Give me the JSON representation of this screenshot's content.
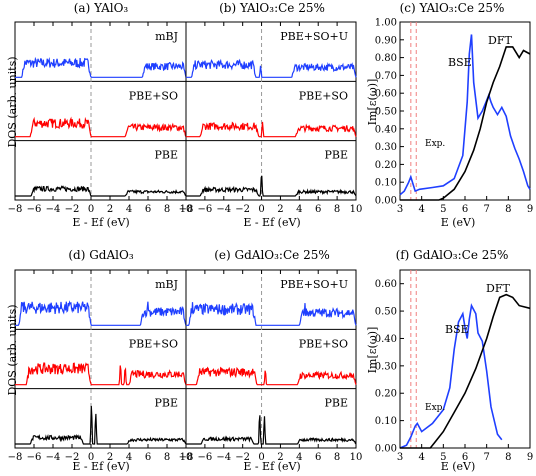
{
  "chart_data": [
    {
      "id": "a",
      "type": "line",
      "title": "(a) YAlO₃",
      "ylabel": "DOS (arb. units)",
      "xlabel": "E - Ef (eV)",
      "xlim": [
        -8,
        10
      ],
      "xticks": [
        -8,
        -6,
        -4,
        -2,
        0,
        2,
        4,
        6,
        8,
        10
      ],
      "panels": [
        {
          "label": "mBJ",
          "color": "#1f3fff",
          "bands": [
            {
              "from": -7.3,
              "to": 0.0,
              "height": 0.34
            },
            {
              "from": 5.4,
              "to": 10.0,
              "height": 0.26
            }
          ],
          "spikes": []
        },
        {
          "label": "PBE+SO",
          "color": "#ff0000",
          "bands": [
            {
              "from": -6.4,
              "to": 0.0,
              "height": 0.32
            },
            {
              "from": 3.6,
              "to": 10.0,
              "height": 0.22
            }
          ],
          "spikes": []
        },
        {
          "label": "PBE",
          "color": "#000000",
          "bands": [
            {
              "from": -6.3,
              "to": 0.0,
              "height": 0.17
            },
            {
              "from": 3.6,
              "to": 10.0,
              "height": 0.1
            }
          ],
          "spikes": []
        }
      ]
    },
    {
      "id": "b",
      "type": "line",
      "title": "(b) YAlO₃:Ce 25%",
      "xlabel": "E - Ef (eV)",
      "xlim": [
        -8,
        10
      ],
      "xticks": [
        -8,
        -6,
        -4,
        -2,
        0,
        2,
        4,
        6,
        8,
        10
      ],
      "panels": [
        {
          "label": "PBE+SO+U",
          "color": "#1f3fff",
          "bands": [
            {
              "from": -7.4,
              "to": -0.6,
              "height": 0.3
            },
            {
              "from": 3.2,
              "to": 10.0,
              "height": 0.24
            }
          ],
          "spikes": [
            {
              "x": -0.1,
              "height": 0.25
            }
          ]
        },
        {
          "label": "PBE+SO",
          "color": "#ff0000",
          "bands": [
            {
              "from": -6.5,
              "to": -0.3,
              "height": 0.25
            },
            {
              "from": 3.6,
              "to": 10.0,
              "height": 0.2
            }
          ],
          "spikes": [
            {
              "x": 0.1,
              "height": 0.3
            }
          ]
        },
        {
          "label": "PBE",
          "color": "#000000",
          "bands": [
            {
              "from": -6.5,
              "to": -0.3,
              "height": 0.15
            },
            {
              "from": 3.6,
              "to": 10.0,
              "height": 0.1
            }
          ],
          "spikes": [
            {
              "x": 0.0,
              "height": 0.55
            }
          ]
        }
      ]
    },
    {
      "id": "c",
      "type": "line",
      "title": "(c) YAlO₃:Ce 25%",
      "xlabel": "E (eV)",
      "ylabel": "Im[ε(ω)]",
      "xlim": [
        3,
        9
      ],
      "ylim": [
        0,
        1.0
      ],
      "xticks": [
        3,
        4,
        5,
        6,
        7,
        8,
        9
      ],
      "yticks": [
        "0.00",
        "0.10",
        "0.20",
        "0.30",
        "0.40",
        "0.50",
        "0.60",
        "0.70",
        "0.80",
        "0.90",
        "1.00"
      ],
      "annotations": [
        "Exp."
      ],
      "exp_lines": [
        3.5,
        3.75
      ],
      "series": [
        {
          "name": "BSE",
          "color": "#1f3fff",
          "x": [
            3.0,
            3.2,
            3.4,
            3.5,
            3.6,
            3.7,
            3.9,
            4.5,
            5.0,
            5.5,
            5.9,
            6.1,
            6.2,
            6.3,
            6.4,
            6.6,
            6.8,
            7.0,
            7.1,
            7.2,
            7.3,
            7.5,
            7.7,
            7.9,
            8.1,
            8.3,
            8.5,
            8.7,
            8.9,
            9.0
          ],
          "y": [
            0.03,
            0.05,
            0.1,
            0.13,
            0.09,
            0.05,
            0.06,
            0.07,
            0.08,
            0.12,
            0.25,
            0.55,
            0.82,
            0.93,
            0.66,
            0.46,
            0.5,
            0.56,
            0.59,
            0.55,
            0.52,
            0.48,
            0.52,
            0.47,
            0.36,
            0.29,
            0.23,
            0.16,
            0.08,
            0.06
          ]
        },
        {
          "name": "DFT",
          "color": "#000000",
          "x": [
            3.0,
            4.8,
            5.0,
            5.5,
            6.0,
            6.4,
            6.7,
            7.0,
            7.3,
            7.6,
            7.9,
            8.2,
            8.5,
            8.7,
            9.0
          ],
          "y": [
            0.0,
            0.0,
            0.01,
            0.06,
            0.16,
            0.28,
            0.4,
            0.55,
            0.66,
            0.75,
            0.86,
            0.86,
            0.8,
            0.84,
            0.82
          ]
        }
      ]
    },
    {
      "id": "d",
      "type": "line",
      "title": "(d) GdAlO₃",
      "ylabel": "DOS (arb. units)",
      "xlabel": "E - Ef (eV)",
      "xlim": [
        -8,
        10
      ],
      "xticks": [
        -8,
        -6,
        -4,
        -2,
        0,
        2,
        4,
        6,
        8,
        10
      ],
      "panels": [
        {
          "label": "mBJ",
          "color": "#1f3fff",
          "bands": [
            {
              "from": -7.6,
              "to": 0.0,
              "height": 0.42
            },
            {
              "from": 5.2,
              "to": 10.0,
              "height": 0.32
            }
          ],
          "spikes": [
            {
              "x": -7.2,
              "height": 0.62
            },
            {
              "x": 6.0,
              "height": 0.55
            }
          ]
        },
        {
          "label": "PBE+SO",
          "color": "#ff0000",
          "bands": [
            {
              "from": -6.8,
              "to": 0.0,
              "height": 0.38
            },
            {
              "from": 4.0,
              "to": 10.0,
              "height": 0.25
            }
          ],
          "spikes": [
            {
              "x": -2.7,
              "height": 0.55
            },
            {
              "x": 3.1,
              "height": 0.48
            },
            {
              "x": 3.6,
              "height": 0.42
            }
          ]
        },
        {
          "label": "PBE",
          "color": "#000000",
          "bands": [
            {
              "from": -6.4,
              "to": -0.8,
              "height": 0.15
            },
            {
              "from": 3.8,
              "to": 10.0,
              "height": 0.1
            }
          ],
          "spikes": [
            {
              "x": 0.05,
              "height": 0.92
            },
            {
              "x": 0.5,
              "height": 0.7
            }
          ]
        }
      ]
    },
    {
      "id": "e",
      "type": "line",
      "title": "(e) GdAlO₃:Ce 25%",
      "xlabel": "E - Ef (eV)",
      "xlim": [
        -8,
        10
      ],
      "xticks": [
        -8,
        -6,
        -4,
        -2,
        0,
        2,
        4,
        6,
        8,
        10
      ],
      "panels": [
        {
          "label": "PBE+SO+U",
          "color": "#1f3fff",
          "bands": [
            {
              "from": -7.7,
              "to": -0.6,
              "height": 0.38
            },
            {
              "from": 4.0,
              "to": 10.0,
              "height": 0.3
            }
          ],
          "spikes": [
            {
              "x": -7.3,
              "height": 0.5
            },
            {
              "x": 4.6,
              "height": 0.45
            }
          ]
        },
        {
          "label": "PBE+SO",
          "color": "#ff0000",
          "bands": [
            {
              "from": -6.9,
              "to": -0.5,
              "height": 0.3
            },
            {
              "from": 3.8,
              "to": 10.0,
              "height": 0.22
            }
          ],
          "spikes": [
            {
              "x": -2.5,
              "height": 0.42
            },
            {
              "x": 0.4,
              "height": 0.35
            }
          ]
        },
        {
          "label": "PBE",
          "color": "#000000",
          "bands": [
            {
              "from": -6.4,
              "to": -0.8,
              "height": 0.12
            },
            {
              "from": 3.8,
              "to": 10.0,
              "height": 0.1
            }
          ],
          "spikes": [
            {
              "x": -0.2,
              "height": 0.72
            },
            {
              "x": 0.3,
              "height": 0.6
            }
          ]
        }
      ]
    },
    {
      "id": "f",
      "type": "line",
      "title": "(f) GdAlO₃:Ce 25%",
      "xlabel": "E (eV)",
      "ylabel": "Im[ε(ω)]",
      "xlim": [
        3,
        9
      ],
      "ylim": [
        0,
        0.65
      ],
      "xticks": [
        3,
        4,
        5,
        6,
        7,
        8,
        9
      ],
      "yticks": [
        "0.00",
        "0.10",
        "0.20",
        "0.30",
        "0.40",
        "0.50",
        "0.60"
      ],
      "annotations": [
        "Exp."
      ],
      "exp_lines": [
        3.5,
        3.75
      ],
      "series": [
        {
          "name": "BSE",
          "color": "#1f3fff",
          "x": [
            3.0,
            3.3,
            3.5,
            3.6,
            3.7,
            3.8,
            4.0,
            4.5,
            5.0,
            5.3,
            5.5,
            5.7,
            5.9,
            6.0,
            6.1,
            6.2,
            6.3,
            6.5,
            6.6,
            6.8,
            7.0,
            7.2,
            7.5,
            7.7
          ],
          "y": [
            0.0,
            0.01,
            0.04,
            0.06,
            0.08,
            0.09,
            0.06,
            0.09,
            0.14,
            0.22,
            0.36,
            0.46,
            0.49,
            0.44,
            0.4,
            0.47,
            0.52,
            0.49,
            0.42,
            0.39,
            0.28,
            0.15,
            0.05,
            0.03
          ]
        },
        {
          "name": "DFT",
          "color": "#000000",
          "x": [
            3.0,
            4.4,
            4.6,
            5.0,
            5.5,
            6.0,
            6.5,
            7.0,
            7.3,
            7.6,
            7.9,
            8.2,
            8.5,
            9.0
          ],
          "y": [
            0.0,
            0.0,
            0.02,
            0.06,
            0.13,
            0.2,
            0.29,
            0.4,
            0.48,
            0.55,
            0.56,
            0.55,
            0.52,
            0.51
          ]
        }
      ]
    }
  ]
}
